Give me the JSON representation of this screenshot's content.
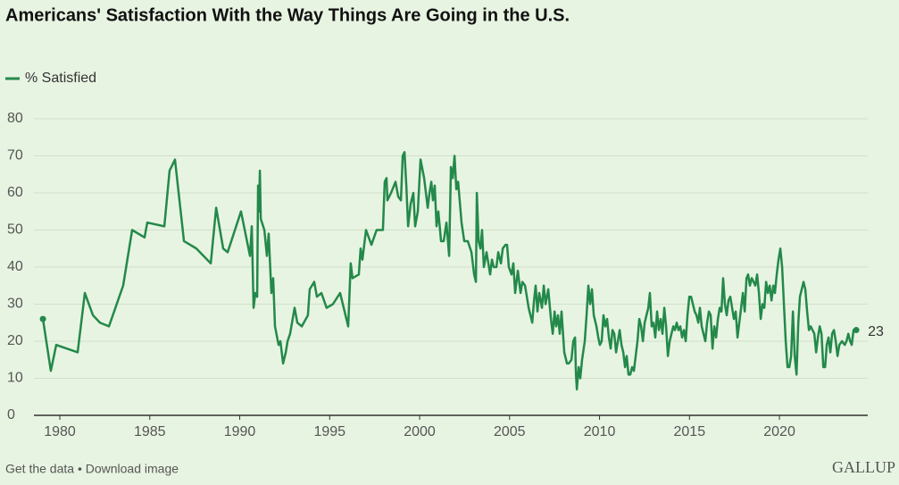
{
  "chart_data": {
    "type": "line",
    "title": "Americans' Satisfaction With the Way Things Are Going in the U.S.",
    "footer": "Get the data • Download image",
    "brand": "GALLUP",
    "x": [
      1979.06,
      1979.5,
      1979.8,
      1980.99,
      1981.39,
      1981.84,
      1982.23,
      1982.73,
      1983.52,
      1984.02,
      1984.71,
      1984.86,
      1985.81,
      1986.1,
      1986.4,
      1986.9,
      1987.59,
      1988.39,
      1988.69,
      1989.08,
      1989.33,
      1990.07,
      1990.57,
      1990.67,
      1990.77,
      1990.87,
      1990.97,
      1991.02,
      1991.07,
      1991.12,
      1991.17,
      1991.37,
      1991.51,
      1991.61,
      1991.76,
      1991.86,
      1991.96,
      1992.16,
      1992.26,
      1992.41,
      1992.56,
      1992.66,
      1992.8,
      1993.05,
      1993.2,
      1993.45,
      1993.79,
      1993.89,
      1994.14,
      1994.29,
      1994.54,
      1994.83,
      1995.18,
      1995.58,
      1996.03,
      1996.17,
      1996.27,
      1996.62,
      1996.72,
      1996.82,
      1997.02,
      1997.32,
      1997.61,
      1997.96,
      1998.06,
      1998.16,
      1998.21,
      1998.41,
      1998.66,
      1998.81,
      1998.96,
      1999.06,
      1999.16,
      1999.26,
      1999.36,
      1999.5,
      1999.65,
      1999.75,
      1999.9,
      2000.05,
      2000.25,
      2000.45,
      2000.55,
      2000.65,
      2000.74,
      2000.84,
      2000.94,
      2001.04,
      2001.19,
      2001.34,
      2001.49,
      2001.64,
      2001.74,
      2001.84,
      2001.94,
      2002.04,
      2002.14,
      2002.33,
      2002.48,
      2002.68,
      2002.88,
      2003.03,
      2003.13,
      2003.18,
      2003.28,
      2003.38,
      2003.47,
      2003.57,
      2003.72,
      2003.92,
      2004.02,
      2004.12,
      2004.27,
      2004.37,
      2004.52,
      2004.62,
      2004.77,
      2004.86,
      2004.96,
      2005.11,
      2005.21,
      2005.31,
      2005.46,
      2005.61,
      2005.71,
      2005.86,
      2005.96,
      2006.06,
      2006.26,
      2006.36,
      2006.45,
      2006.55,
      2006.65,
      2006.8,
      2006.9,
      2007.0,
      2007.15,
      2007.3,
      2007.4,
      2007.5,
      2007.59,
      2007.69,
      2007.79,
      2007.89,
      2008.04,
      2008.19,
      2008.29,
      2008.44,
      2008.54,
      2008.64,
      2008.69,
      2008.74,
      2008.84,
      2008.93,
      2009.03,
      2009.18,
      2009.28,
      2009.38,
      2009.48,
      2009.58,
      2009.68,
      2009.83,
      2009.93,
      2010.02,
      2010.12,
      2010.22,
      2010.32,
      2010.42,
      2010.52,
      2010.62,
      2010.72,
      2010.82,
      2010.92,
      2011.02,
      2011.12,
      2011.22,
      2011.32,
      2011.42,
      2011.51,
      2011.61,
      2011.71,
      2011.81,
      2011.91,
      2012.01,
      2012.11,
      2012.21,
      2012.31,
      2012.41,
      2012.51,
      2012.61,
      2012.71,
      2012.8,
      2012.9,
      2013.0,
      2013.1,
      2013.2,
      2013.3,
      2013.4,
      2013.5,
      2013.6,
      2013.7,
      2013.8,
      2013.9,
      2014.0,
      2014.1,
      2014.19,
      2014.29,
      2014.39,
      2014.49,
      2014.59,
      2014.69,
      2014.79,
      2014.89,
      2014.99,
      2015.09,
      2015.19,
      2015.29,
      2015.39,
      2015.49,
      2015.58,
      2015.68,
      2015.78,
      2015.88,
      2015.98,
      2016.08,
      2016.18,
      2016.28,
      2016.38,
      2016.48,
      2016.58,
      2016.68,
      2016.78,
      2016.87,
      2016.97,
      2017.07,
      2017.17,
      2017.27,
      2017.37,
      2017.47,
      2017.57,
      2017.67,
      2017.77,
      2017.87,
      2017.97,
      2018.07,
      2018.17,
      2018.26,
      2018.36,
      2018.46,
      2018.56,
      2018.66,
      2018.76,
      2018.86,
      2018.96,
      2019.06,
      2019.16,
      2019.26,
      2019.36,
      2019.46,
      2019.56,
      2019.66,
      2019.75,
      2019.85,
      2019.95,
      2020.05,
      2020.15,
      2020.25,
      2020.35,
      2020.45,
      2020.55,
      2020.65,
      2020.75,
      2020.85,
      2020.95,
      2021.05,
      2021.14,
      2021.24,
      2021.34,
      2021.44,
      2021.54,
      2021.64,
      2021.74,
      2021.84,
      2021.94,
      2022.04,
      2022.14,
      2022.24,
      2022.34,
      2022.44,
      2022.54,
      2022.63,
      2022.73,
      2022.83,
      2022.93,
      2023.03,
      2023.13,
      2023.23,
      2023.33,
      2023.48,
      2023.63,
      2023.73,
      2023.83,
      2023.93,
      2024.02,
      2024.12,
      2024.27
    ],
    "series": [
      {
        "name": "% Satisfied",
        "color": "#23894a",
        "values": [
          26,
          12,
          19,
          17,
          33,
          27,
          25,
          24,
          35,
          50,
          48,
          52,
          51,
          66,
          69,
          47,
          45,
          41,
          56,
          45,
          44,
          55,
          43,
          51,
          29,
          33,
          32,
          62,
          55,
          66,
          53,
          50,
          43,
          49,
          33,
          37,
          24,
          19,
          20,
          14,
          17,
          20,
          22,
          29,
          25,
          24,
          27,
          34,
          36,
          32,
          33,
          29,
          30,
          33,
          24,
          41,
          37,
          38,
          45,
          42,
          50,
          46,
          50,
          50,
          63,
          64,
          58,
          60,
          63,
          59,
          58,
          70,
          71,
          62,
          51,
          57,
          60,
          51,
          55,
          69,
          64,
          56,
          60,
          63,
          58,
          62,
          51,
          55,
          47,
          47,
          52,
          43,
          67,
          64,
          70,
          61,
          63,
          52,
          47,
          47,
          44,
          38,
          36,
          60,
          47,
          45,
          50,
          40,
          44,
          38,
          42,
          40,
          40,
          44,
          41,
          45,
          46,
          46,
          40,
          38,
          41,
          33,
          39,
          33,
          36,
          35,
          32,
          29,
          25,
          31,
          35,
          28,
          33,
          29,
          35,
          30,
          34,
          26,
          22,
          28,
          24,
          27,
          22,
          28,
          17,
          14,
          14,
          15,
          20,
          21,
          11,
          7,
          13,
          10,
          15,
          20,
          27,
          35,
          30,
          34,
          27,
          24,
          21,
          19,
          20,
          27,
          24,
          26,
          21,
          18,
          23,
          22,
          17,
          20,
          23,
          19,
          17,
          13,
          16,
          11,
          11,
          13,
          12,
          16,
          20,
          26,
          24,
          20,
          25,
          27,
          29,
          33,
          24,
          25,
          21,
          28,
          23,
          26,
          22,
          29,
          24,
          16,
          20,
          22,
          24,
          23,
          25,
          23,
          24,
          21,
          23,
          20,
          27,
          32,
          32,
          30,
          28,
          27,
          25,
          29,
          24,
          22,
          20,
          25,
          28,
          27,
          18,
          24,
          21,
          26,
          29,
          28,
          37,
          30,
          27,
          31,
          32,
          29,
          26,
          28,
          21,
          25,
          29,
          33,
          28,
          37,
          38,
          35,
          37,
          36,
          35,
          38,
          33,
          26,
          30,
          29,
          36,
          33,
          35,
          31,
          35,
          33,
          38,
          42,
          45,
          40,
          30,
          20,
          13,
          13,
          16,
          28,
          16,
          11,
          25,
          32,
          34,
          36,
          34,
          28,
          23,
          24,
          23,
          22,
          17,
          21,
          24,
          22,
          13,
          13,
          19,
          21,
          17,
          22,
          23,
          20,
          16,
          19,
          20,
          19,
          20,
          22,
          20,
          19,
          23,
          23
        ]
      }
    ],
    "xlim": [
      1978.56,
      2024.91
    ],
    "xticks": [
      1980,
      1985,
      1990,
      1995,
      2000,
      2005,
      2010,
      2015,
      2020
    ],
    "ylim": [
      0,
      80
    ],
    "yticks": [
      0,
      10,
      20,
      30,
      40,
      50,
      60,
      70,
      80
    ],
    "grid": true
  }
}
